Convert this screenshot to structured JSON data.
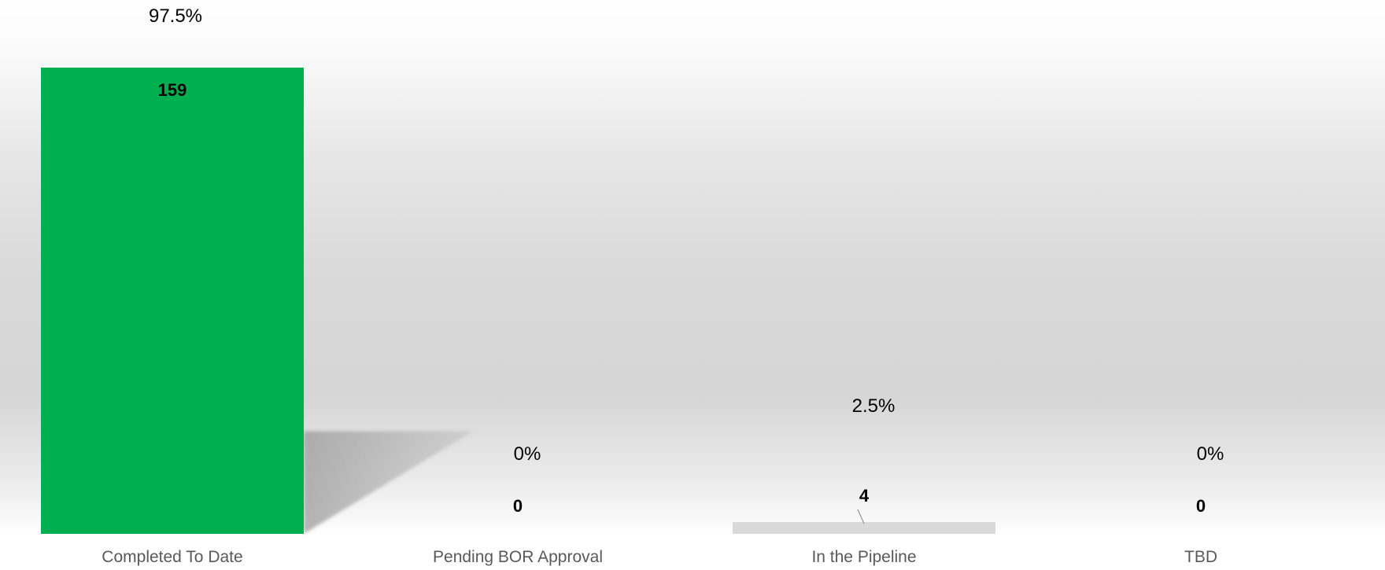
{
  "chart_data": {
    "type": "bar",
    "categories": [
      "Completed To Date",
      "Pending BOR Approval",
      "In the Pipeline",
      "TBD"
    ],
    "values": [
      159,
      0,
      4,
      0
    ],
    "percent_labels": [
      "97.5%",
      "0%",
      "2.5%",
      "0%"
    ],
    "title": "",
    "xlabel": "",
    "ylabel": "",
    "ylim": [
      0,
      159
    ],
    "grid": false,
    "bar_colors": [
      "#00b050",
      "#00b050",
      "#d9d9d9",
      "#d9d9d9"
    ],
    "label_color": "#000000",
    "category_label_color": "#595959"
  }
}
